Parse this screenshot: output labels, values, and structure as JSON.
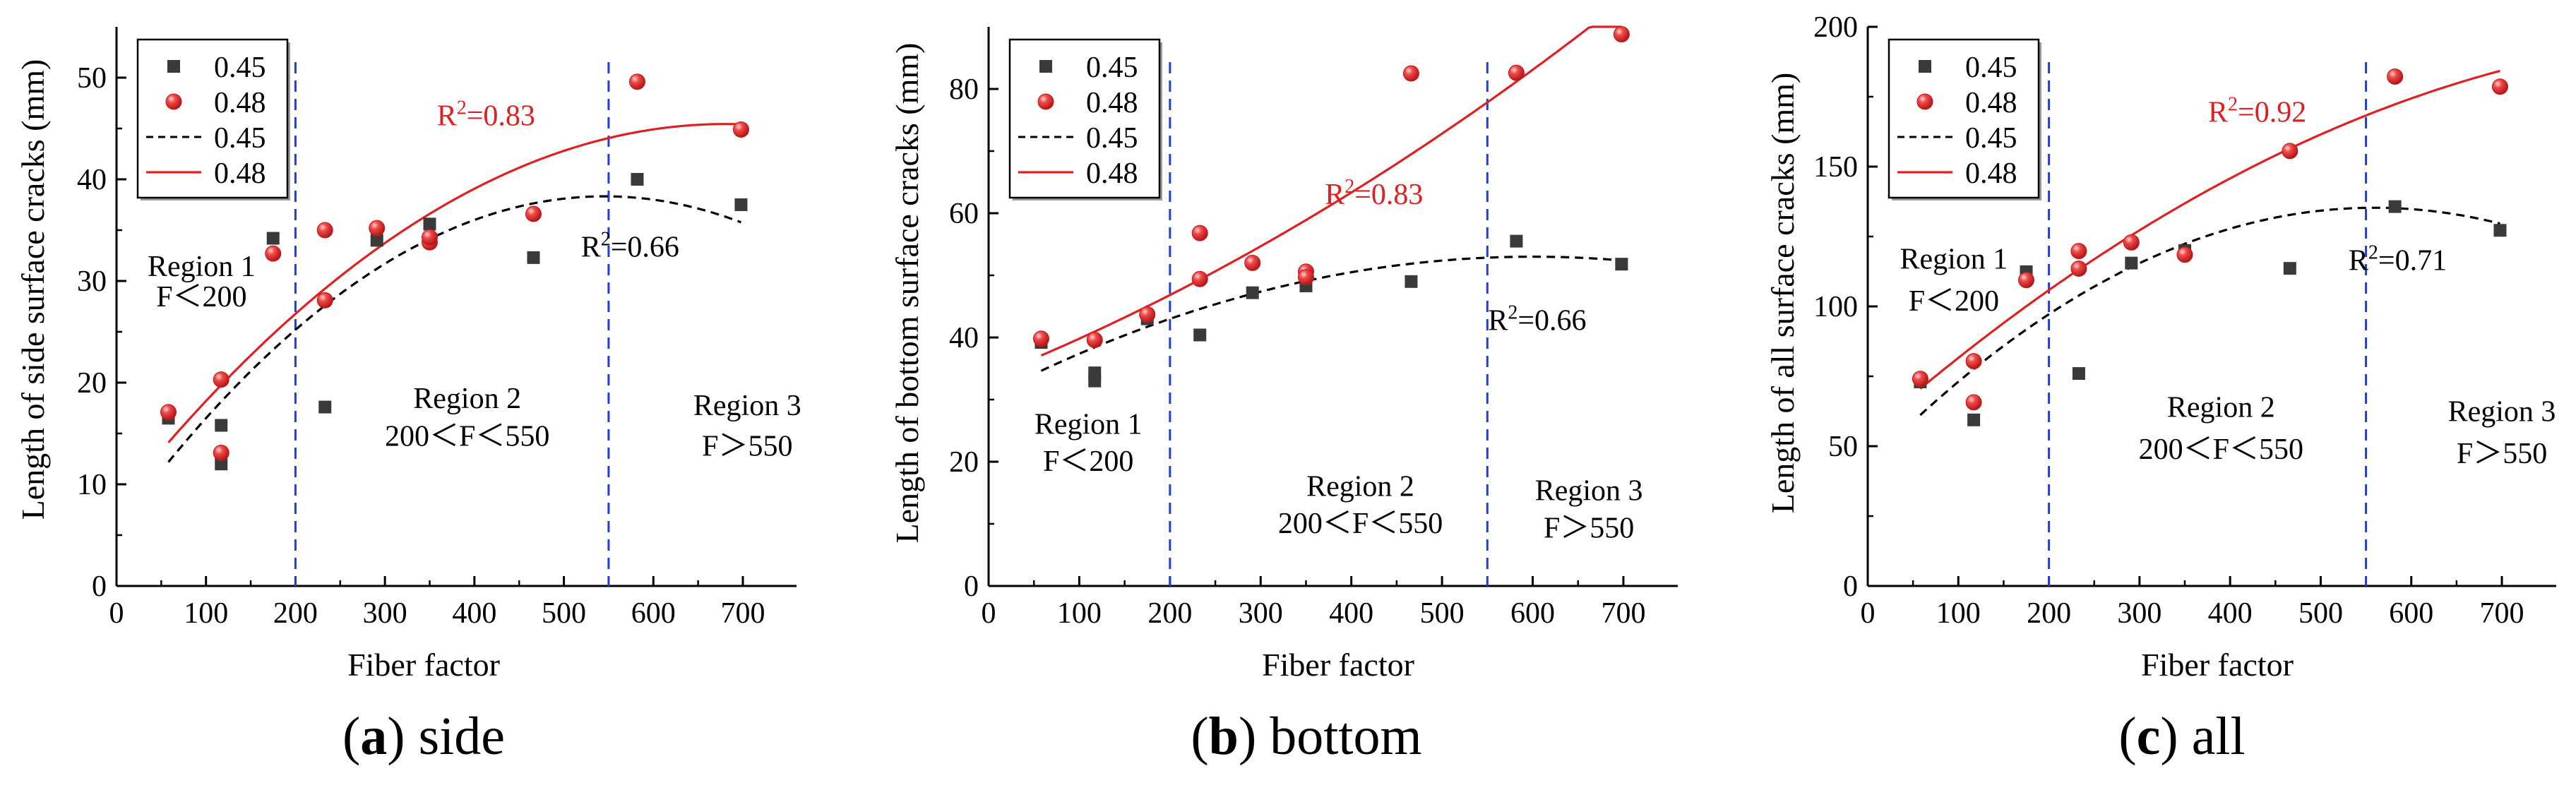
{
  "chart_data": [
    {
      "type": "scatter",
      "panel_label": "a",
      "caption": "side",
      "xlabel": "Fiber factor",
      "ylabel": "Length of side surface cracks (mm)",
      "xlim": [
        0,
        760
      ],
      "ylim": [
        0,
        55
      ],
      "xticks": [
        0,
        100,
        200,
        300,
        400,
        500,
        600,
        700
      ],
      "yticks": [
        0,
        10,
        20,
        30,
        40,
        50
      ],
      "legend": [
        "0.45",
        "0.48",
        "0.45",
        "0.48"
      ],
      "series": [
        {
          "name": "0.45",
          "marker": "square",
          "color": "#3a3a3a",
          "points": [
            [
              58,
              16.5
            ],
            [
              117,
              15.8
            ],
            [
              117,
              12
            ],
            [
              175,
              34.2
            ],
            [
              233,
              17.6
            ],
            [
              291,
              34
            ],
            [
              350,
              35.6
            ],
            [
              466,
              32.3
            ],
            [
              582,
              40
            ],
            [
              698,
              37.5
            ]
          ]
        },
        {
          "name": "0.48",
          "marker": "sphere",
          "color": "#e53030",
          "points": [
            [
              58,
              17.1
            ],
            [
              117,
              20.3
            ],
            [
              117,
              13.1
            ],
            [
              175,
              32.7
            ],
            [
              233,
              35
            ],
            [
              233,
              28.1
            ],
            [
              291,
              35.2
            ],
            [
              350,
              33.8
            ],
            [
              350,
              34.3
            ],
            [
              466,
              36.6
            ],
            [
              582,
              49.6
            ],
            [
              698,
              44.9
            ]
          ]
        }
      ],
      "fits": [
        {
          "name": "0.45",
          "style": "dashed",
          "color": "#000000",
          "coef": [
            5.6,
            0.12,
            -0.00011
          ]
        },
        {
          "name": "0.48",
          "style": "solid",
          "color": "#e02020",
          "coef": [
            8.0,
            0.11,
            -8.08e-05
          ]
        }
      ],
      "region_lines_x": [
        200,
        550
      ],
      "annotations": [
        {
          "text": "R",
          "sup": "2",
          "tail": "=0.83",
          "color": "#e02020",
          "x": 413,
          "y": 45.3
        },
        {
          "text": "R",
          "sup": "2",
          "tail": "=0.66",
          "color": "#000000",
          "x": 574,
          "y": 32.4
        },
        {
          "text": "Region 1",
          "color": "#000000",
          "x": 95,
          "y": 30.5
        },
        {
          "text": "F＜200",
          "color": "#000000",
          "x": 95,
          "y": 27.5
        },
        {
          "text": "Region 2",
          "color": "#000000",
          "x": 392,
          "y": 17.5
        },
        {
          "text": "200＜F＜550",
          "color": "#000000",
          "x": 392,
          "y": 13.8
        },
        {
          "text": "Region 3",
          "color": "#000000",
          "x": 705,
          "y": 16.8
        },
        {
          "text": "F＞550",
          "color": "#000000",
          "x": 705,
          "y": 12.8
        }
      ]
    },
    {
      "type": "scatter",
      "panel_label": "b",
      "caption": "bottom",
      "xlabel": "Fiber factor",
      "ylabel": "Length of bottom surface cracks (mm)",
      "xlim": [
        0,
        760
      ],
      "ylim": [
        0,
        90
      ],
      "xticks": [
        0,
        100,
        200,
        300,
        400,
        500,
        600,
        700
      ],
      "yticks": [
        0,
        20,
        40,
        60,
        80
      ],
      "legend": [
        "0.45",
        "0.48",
        "0.45",
        "0.48"
      ],
      "series": [
        {
          "name": "0.45",
          "marker": "square",
          "color": "#3a3a3a",
          "points": [
            [
              58,
              39.2
            ],
            [
              117,
              34.3
            ],
            [
              117,
              33
            ],
            [
              175,
              43
            ],
            [
              233,
              40.4
            ],
            [
              291,
              47.2
            ],
            [
              350,
              48.3
            ],
            [
              466,
              49
            ],
            [
              582,
              55.5
            ],
            [
              698,
              51.8
            ]
          ]
        },
        {
          "name": "0.48",
          "marker": "sphere",
          "color": "#e53030",
          "points": [
            [
              58,
              39.8
            ],
            [
              117,
              39.6
            ],
            [
              175,
              43.7
            ],
            [
              233,
              56.8
            ],
            [
              233,
              49.4
            ],
            [
              291,
              52
            ],
            [
              350,
              50.6
            ],
            [
              350,
              49.7
            ],
            [
              466,
              82.5
            ],
            [
              582,
              82.6
            ],
            [
              698,
              88.8
            ]
          ]
        }
      ],
      "fits": [
        {
          "name": "0.45",
          "style": "dashed",
          "color": "#000000",
          "coef": [
            30.5,
            0.075,
            -6.25e-05
          ]
        },
        {
          "name": "0.48",
          "style": "solid",
          "color": "#e02020",
          "coef": [
            33.6,
            0.058,
            4.08e-05
          ]
        }
      ],
      "region_lines_x": [
        200,
        550
      ],
      "annotations": [
        {
          "text": "R",
          "sup": "2",
          "tail": "=0.83",
          "color": "#e02020",
          "x": 425,
          "y": 61.5
        },
        {
          "text": "R",
          "sup": "2",
          "tail": "=0.66",
          "color": "#000000",
          "x": 605,
          "y": 41.2
        },
        {
          "text": "Region 1",
          "color": "#000000",
          "x": 110,
          "y": 24.5
        },
        {
          "text": "F＜200",
          "color": "#000000",
          "x": 110,
          "y": 18.5
        },
        {
          "text": "Region 2",
          "color": "#000000",
          "x": 410,
          "y": 14.5
        },
        {
          "text": "200＜F＜550",
          "color": "#000000",
          "x": 410,
          "y": 8.5
        },
        {
          "text": "Region 3",
          "color": "#000000",
          "x": 662,
          "y": 13.8
        },
        {
          "text": "F＞550",
          "color": "#000000",
          "x": 662,
          "y": 7.8
        }
      ]
    },
    {
      "type": "scatter",
      "panel_label": "c",
      "caption": "all",
      "xlabel": "Fiber factor",
      "ylabel": "Length of all surface cracks (mm)",
      "xlim": [
        0,
        760
      ],
      "ylim": [
        0,
        200
      ],
      "xticks": [
        0,
        100,
        200,
        300,
        400,
        500,
        600,
        700
      ],
      "yticks": [
        0,
        50,
        100,
        150,
        200
      ],
      "legend": [
        "0.45",
        "0.48",
        "0.45",
        "0.48"
      ],
      "series": [
        {
          "name": "0.45",
          "marker": "square",
          "color": "#3a3a3a",
          "points": [
            [
              58,
              73
            ],
            [
              117,
              59.4
            ],
            [
              175,
              112.4
            ],
            [
              233,
              76
            ],
            [
              291,
              115.5
            ],
            [
              350,
              120
            ],
            [
              466,
              113.6
            ],
            [
              582,
              135.7
            ],
            [
              698,
              127.2
            ]
          ]
        },
        {
          "name": "0.48",
          "marker": "sphere",
          "color": "#e53030",
          "points": [
            [
              58,
              74.1
            ],
            [
              117,
              80.4
            ],
            [
              117,
              65.7
            ],
            [
              175,
              109.4
            ],
            [
              233,
              119.8
            ],
            [
              233,
              113.5
            ],
            [
              291,
              122.9
            ],
            [
              350,
              118.5
            ],
            [
              466,
              155.6
            ],
            [
              582,
              182.2
            ],
            [
              698,
              178.6
            ]
          ]
        }
      ],
      "fits": [
        {
          "name": "0.45",
          "style": "dashed",
          "color": "#000000",
          "coef": [
            43,
            0.33,
            -0.000295
          ]
        },
        {
          "name": "0.48",
          "style": "solid",
          "color": "#e02020",
          "coef": [
            54.5,
            0.285,
            -0.000142
          ]
        }
      ],
      "region_lines_x": [
        200,
        550
      ],
      "annotations": [
        {
          "text": "R",
          "sup": "2",
          "tail": "=0.92",
          "color": "#e02020",
          "x": 430,
          "y": 166
        },
        {
          "text": "R",
          "sup": "2",
          "tail": "=0.71",
          "color": "#000000",
          "x": 585,
          "y": 113
        },
        {
          "text": "Region 1",
          "color": "#000000",
          "x": 95,
          "y": 113.5
        },
        {
          "text": "F＜200",
          "color": "#000000",
          "x": 95,
          "y": 98.5
        },
        {
          "text": "Region 2",
          "color": "#000000",
          "x": 390,
          "y": 60.5
        },
        {
          "text": "200＜F＜550",
          "color": "#000000",
          "x": 390,
          "y": 45.5
        },
        {
          "text": "Region 3",
          "color": "#000000",
          "x": 700,
          "y": 59
        },
        {
          "text": "F＞550",
          "color": "#000000",
          "x": 700,
          "y": 44
        }
      ]
    }
  ]
}
